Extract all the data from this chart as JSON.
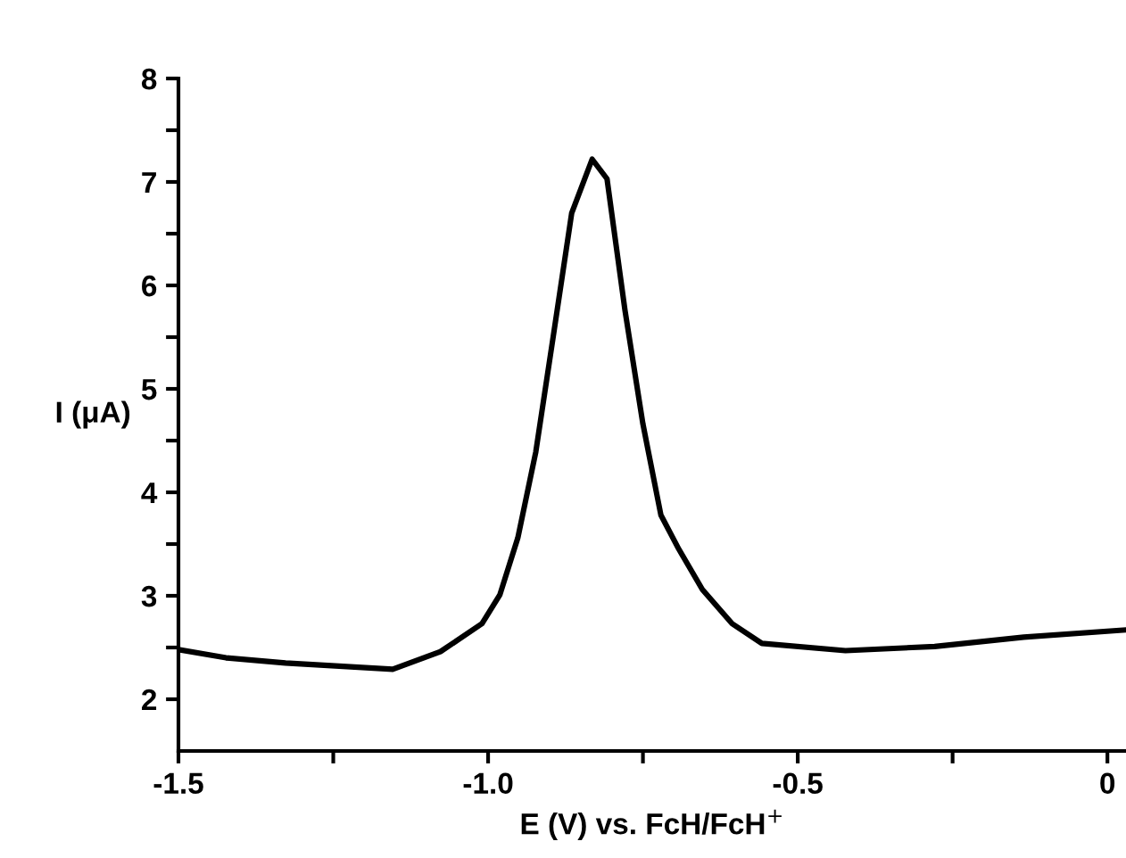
{
  "chart_data": {
    "type": "line",
    "xlabel": "E (V) vs. FcH/FcH$^{+}$",
    "ylabel": "I (μA)",
    "x": [
      -1.5,
      -1.423,
      -1.327,
      -1.154,
      -1.077,
      -1.01,
      -0.981,
      -0.952,
      -0.923,
      -0.894,
      -0.865,
      -0.832,
      -0.808,
      -0.779,
      -0.75,
      -0.721,
      -0.692,
      -0.654,
      -0.606,
      -0.558,
      -0.423,
      -0.279,
      -0.135,
      0.03
    ],
    "series": [
      {
        "color": "#000000",
        "values": [
          2.48,
          2.4,
          2.35,
          2.29,
          2.46,
          2.73,
          3.01,
          3.56,
          4.39,
          5.54,
          6.7,
          7.22,
          7.03,
          5.76,
          4.66,
          3.78,
          3.45,
          3.06,
          2.73,
          2.54,
          2.47,
          2.51,
          2.6,
          2.67
        ]
      }
    ],
    "xlim": [
      -1.5,
      0.03
    ],
    "ylim": [
      1.5,
      8
    ],
    "xticks": [
      {
        "value": -1.5,
        "label": "-1.5"
      },
      {
        "value": -1.25,
        "label": null
      },
      {
        "value": -1.0,
        "label": "-1.0"
      },
      {
        "value": -0.75,
        "label": null
      },
      {
        "value": -0.5,
        "label": "-0.5"
      },
      {
        "value": -0.25,
        "label": null
      },
      0
    ],
    "yticks": [
      2,
      {
        "value": 2.5,
        "label": null
      },
      3,
      {
        "value": 3.5,
        "label": null
      },
      4,
      {
        "value": 4.5,
        "label": null
      },
      5,
      {
        "value": 5.5,
        "label": null
      },
      6,
      {
        "value": 6.5,
        "label": null
      },
      7,
      {
        "value": 7.5,
        "label": null
      },
      8
    ],
    "grid": false,
    "legend": false,
    "marker": "none",
    "line_style": "solid"
  }
}
